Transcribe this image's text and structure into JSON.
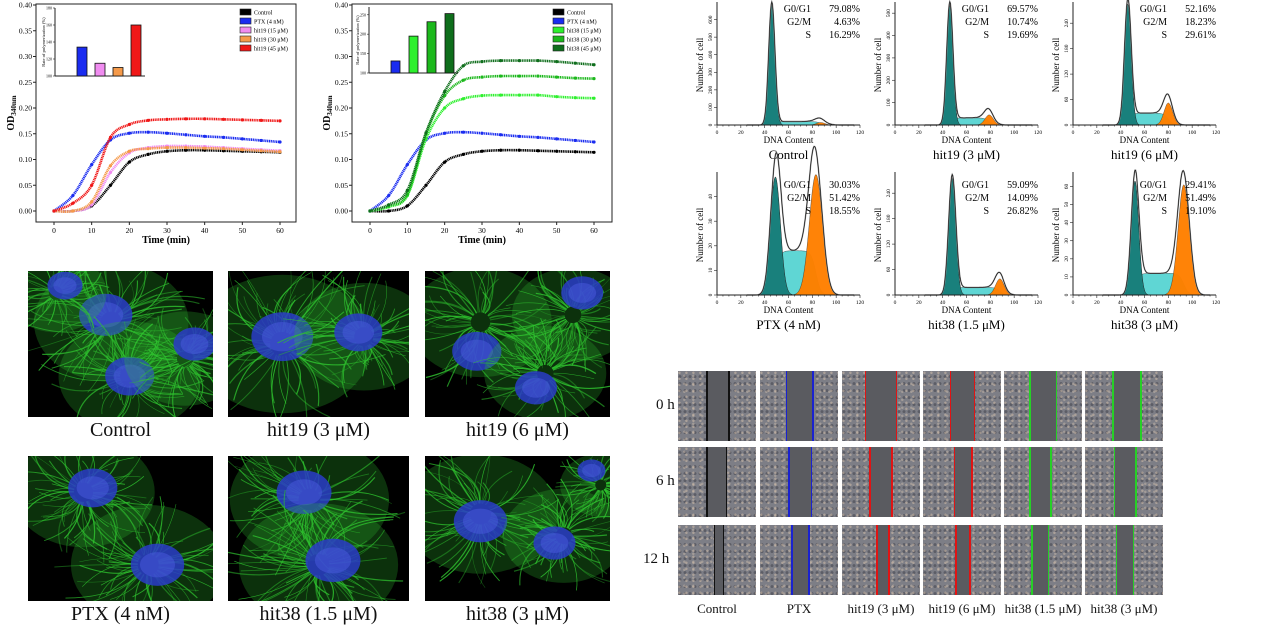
{
  "chart_data": [
    {
      "type": "line",
      "xlabel": "Time (min)",
      "ylabel_main": "OD",
      "ylabel_sub": "340nm",
      "xlim": [
        0,
        60
      ],
      "ylim": [
        0,
        0.4
      ],
      "xticks": [
        "0",
        "10",
        "20",
        "30",
        "40",
        "50",
        "60"
      ],
      "yticks": [
        "0.00",
        "0.05",
        "0.10",
        "0.15",
        "0.20",
        "0.25",
        "0.30",
        "0.35",
        "0.40"
      ],
      "legend": "top-right",
      "x": [
        0,
        5,
        10,
        15,
        20,
        25,
        30,
        35,
        40,
        45,
        50,
        55,
        60
      ],
      "series": [
        {
          "name": "Control",
          "color": "#000000",
          "values": [
            0,
            0,
            0.01,
            0.05,
            0.095,
            0.11,
            0.116,
            0.118,
            0.118,
            0.117,
            0.116,
            0.115,
            0.114
          ]
        },
        {
          "name": "PTX (4 nM)",
          "color": "#1a2cf0",
          "values": [
            0,
            0.03,
            0.09,
            0.138,
            0.151,
            0.153,
            0.151,
            0.148,
            0.145,
            0.143,
            0.14,
            0.137,
            0.134
          ]
        },
        {
          "name": "hit19 (15 μM)",
          "color": "#f08cf0",
          "values": [
            0,
            0,
            0.012,
            0.075,
            0.113,
            0.123,
            0.126,
            0.126,
            0.125,
            0.123,
            0.121,
            0.119,
            0.117
          ]
        },
        {
          "name": "hit19 (30 μM)",
          "color": "#f59a4a",
          "values": [
            0,
            0,
            0.018,
            0.088,
            0.116,
            0.121,
            0.123,
            0.123,
            0.122,
            0.121,
            0.119,
            0.117,
            0.115
          ]
        },
        {
          "name": "hit19 (45 μM)",
          "color": "#f01818",
          "values": [
            0,
            0.015,
            0.05,
            0.143,
            0.168,
            0.176,
            0.178,
            0.179,
            0.179,
            0.178,
            0.177,
            0.176,
            0.175
          ]
        }
      ],
      "inset": {
        "type": "bar",
        "ylabel": "Rate of polymerization (%)",
        "ylim": [
          100,
          180
        ],
        "yticks": [
          "100",
          "120",
          "140",
          "160",
          "180"
        ],
        "values": [
          134,
          115,
          110,
          160
        ],
        "colors": [
          "#1a2cf0",
          "#f08cf0",
          "#f59a4a",
          "#f01818"
        ]
      }
    },
    {
      "type": "line",
      "xlabel": "Time (min)",
      "ylabel_main": "OD",
      "ylabel_sub": "340nm",
      "xlim": [
        0,
        60
      ],
      "ylim": [
        0,
        0.4
      ],
      "xticks": [
        "0",
        "10",
        "20",
        "30",
        "40",
        "50",
        "60"
      ],
      "yticks": [
        "0.00",
        "0.05",
        "0.10",
        "0.15",
        "0.20",
        "0.25",
        "0.30",
        "0.35",
        "0.40"
      ],
      "legend": "top-right",
      "x": [
        0,
        5,
        10,
        15,
        20,
        25,
        30,
        35,
        40,
        45,
        50,
        55,
        60
      ],
      "series": [
        {
          "name": "Control",
          "color": "#000000",
          "values": [
            0,
            0,
            0.01,
            0.05,
            0.095,
            0.11,
            0.116,
            0.118,
            0.118,
            0.117,
            0.116,
            0.115,
            0.114
          ]
        },
        {
          "name": "PTX (4 nM)",
          "color": "#1a2cf0",
          "values": [
            0,
            0.03,
            0.09,
            0.138,
            0.151,
            0.153,
            0.151,
            0.148,
            0.145,
            0.143,
            0.14,
            0.137,
            0.134
          ]
        },
        {
          "name": "hit38 (15 μM)",
          "color": "#2ef02e",
          "values": [
            0,
            0.008,
            0.03,
            0.14,
            0.2,
            0.218,
            0.224,
            0.225,
            0.225,
            0.225,
            0.222,
            0.22,
            0.219
          ]
        },
        {
          "name": "hit38 (30 μM)",
          "color": "#1cb81c",
          "values": [
            0,
            0.01,
            0.032,
            0.15,
            0.224,
            0.254,
            0.26,
            0.262,
            0.262,
            0.262,
            0.26,
            0.258,
            0.257
          ]
        },
        {
          "name": "hit38 (45 μM)",
          "color": "#0f6e1c",
          "values": [
            0,
            0.012,
            0.04,
            0.152,
            0.232,
            0.282,
            0.29,
            0.292,
            0.292,
            0.292,
            0.29,
            0.287,
            0.284
          ]
        }
      ],
      "inset": {
        "type": "bar",
        "ylabel": "Rate of polymerization (%)",
        "ylim": [
          100,
          270
        ],
        "yticks": [
          "100",
          "150",
          "200",
          "250"
        ],
        "values": [
          131,
          195,
          232,
          253
        ],
        "colors": [
          "#1a2cf0",
          "#2ef02e",
          "#1cb81c",
          "#0f6e1c"
        ]
      }
    },
    {
      "type": "area",
      "title": "Control",
      "xlabel": "DNA Content",
      "ylabel": "Number of cell",
      "xlim": [
        0,
        120
      ],
      "ylim": [
        0,
        700
      ],
      "xticks": [
        "0",
        "20",
        "40",
        "60",
        "80",
        "100",
        "120"
      ],
      "yticks": [
        "0",
        "100",
        "200",
        "300",
        "400",
        "500",
        "600"
      ],
      "stats": [
        {
          "label": "G0/G1",
          "value": "79.08%"
        },
        {
          "label": "G2/M",
          "value": "4.63%"
        },
        {
          "label": "S",
          "value": "16.29%"
        }
      ]
    },
    {
      "type": "area",
      "title": "hit19 (3 μM)",
      "xlabel": "DNA Content",
      "ylabel": "Number of cell",
      "xlim": [
        0,
        120
      ],
      "ylim": [
        0,
        550
      ],
      "xticks": [
        "0",
        "20",
        "40",
        "60",
        "80",
        "100",
        "120"
      ],
      "yticks": [
        "0",
        "100",
        "200",
        "300",
        "400",
        "500"
      ],
      "stats": [
        {
          "label": "G0/G1",
          "value": "69.57%"
        },
        {
          "label": "G2/M",
          "value": "10.74%"
        },
        {
          "label": "S",
          "value": "19.69%"
        }
      ]
    },
    {
      "type": "area",
      "title": "hit19 (6 μM)",
      "xlabel": "DNA Content",
      "ylabel": "Number of cell",
      "xlim": [
        0,
        120
      ],
      "ylim": [
        0,
        290
      ],
      "xticks": [
        "0",
        "20",
        "40",
        "60",
        "80",
        "100",
        "120"
      ],
      "yticks": [
        "0",
        "60",
        "120",
        "180",
        "240"
      ],
      "stats": [
        {
          "label": "G0/G1",
          "value": "52.16%"
        },
        {
          "label": "G2/M",
          "value": "18.23%"
        },
        {
          "label": "S",
          "value": "29.61%"
        }
      ]
    },
    {
      "type": "area",
      "title": "PTX (4 nM)",
      "xlabel": "DNA Content",
      "ylabel": "Number of cell",
      "xlim": [
        0,
        120
      ],
      "ylim": [
        0,
        50
      ],
      "xticks": [
        "0",
        "20",
        "40",
        "60",
        "80",
        "100",
        "120"
      ],
      "yticks": [
        "0",
        "10",
        "20",
        "30",
        "40"
      ],
      "stats": [
        {
          "label": "G0/G1",
          "value": "30.03%"
        },
        {
          "label": "G2/M",
          "value": "51.42%"
        },
        {
          "label": "S",
          "value": "18.55%"
        }
      ]
    },
    {
      "type": "area",
      "title": "hit38 (1.5 μM)",
      "xlabel": "DNA Content",
      "ylabel": "Number of cell",
      "xlim": [
        0,
        120
      ],
      "ylim": [
        0,
        290
      ],
      "xticks": [
        "0",
        "20",
        "40",
        "60",
        "80",
        "100",
        "120"
      ],
      "yticks": [
        "0",
        "60",
        "120",
        "180",
        "240"
      ],
      "stats": [
        {
          "label": "G0/G1",
          "value": "59.09%"
        },
        {
          "label": "G2/M",
          "value": "14.09%"
        },
        {
          "label": "S",
          "value": "26.82%"
        }
      ]
    },
    {
      "type": "area",
      "title": "hit38 (3 μM)",
      "xlabel": "DNA Content",
      "ylabel": "Number of cell",
      "xlim": [
        0,
        120
      ],
      "ylim": [
        0,
        68
      ],
      "xticks": [
        "0",
        "20",
        "40",
        "60",
        "80",
        "100",
        "120"
      ],
      "yticks": [
        "0",
        "10",
        "20",
        "30",
        "40",
        "50",
        "60"
      ],
      "stats": [
        {
          "label": "G0/G1",
          "value": "29.41%"
        },
        {
          "label": "G2/M",
          "value": "51.49%"
        },
        {
          "label": "S",
          "value": "19.10%"
        }
      ]
    }
  ],
  "microscopy": {
    "labels": [
      "Control",
      "hit19 (3 μM)",
      "hit19 (6 μM)",
      "PTX (4 nM)",
      "hit38 (1.5 μM)",
      "hit38 (3 μM)"
    ],
    "stain_colors": {
      "tubulin": "#2fc42f",
      "nucleus": "#2a3cc8"
    }
  },
  "wound_healing": {
    "row_labels": [
      "0 h",
      "6 h",
      "12 h"
    ],
    "column_labels": [
      "Control",
      "PTX",
      "hit19 (3 μM)",
      "hit19 (6 μM)",
      "hit38 (1.5 μM)",
      "hit38 (3 μM)"
    ],
    "line_colors": [
      "#111111",
      "#1a22d0",
      "#e01414",
      "#e01414",
      "#26d026",
      "#26d026"
    ]
  }
}
